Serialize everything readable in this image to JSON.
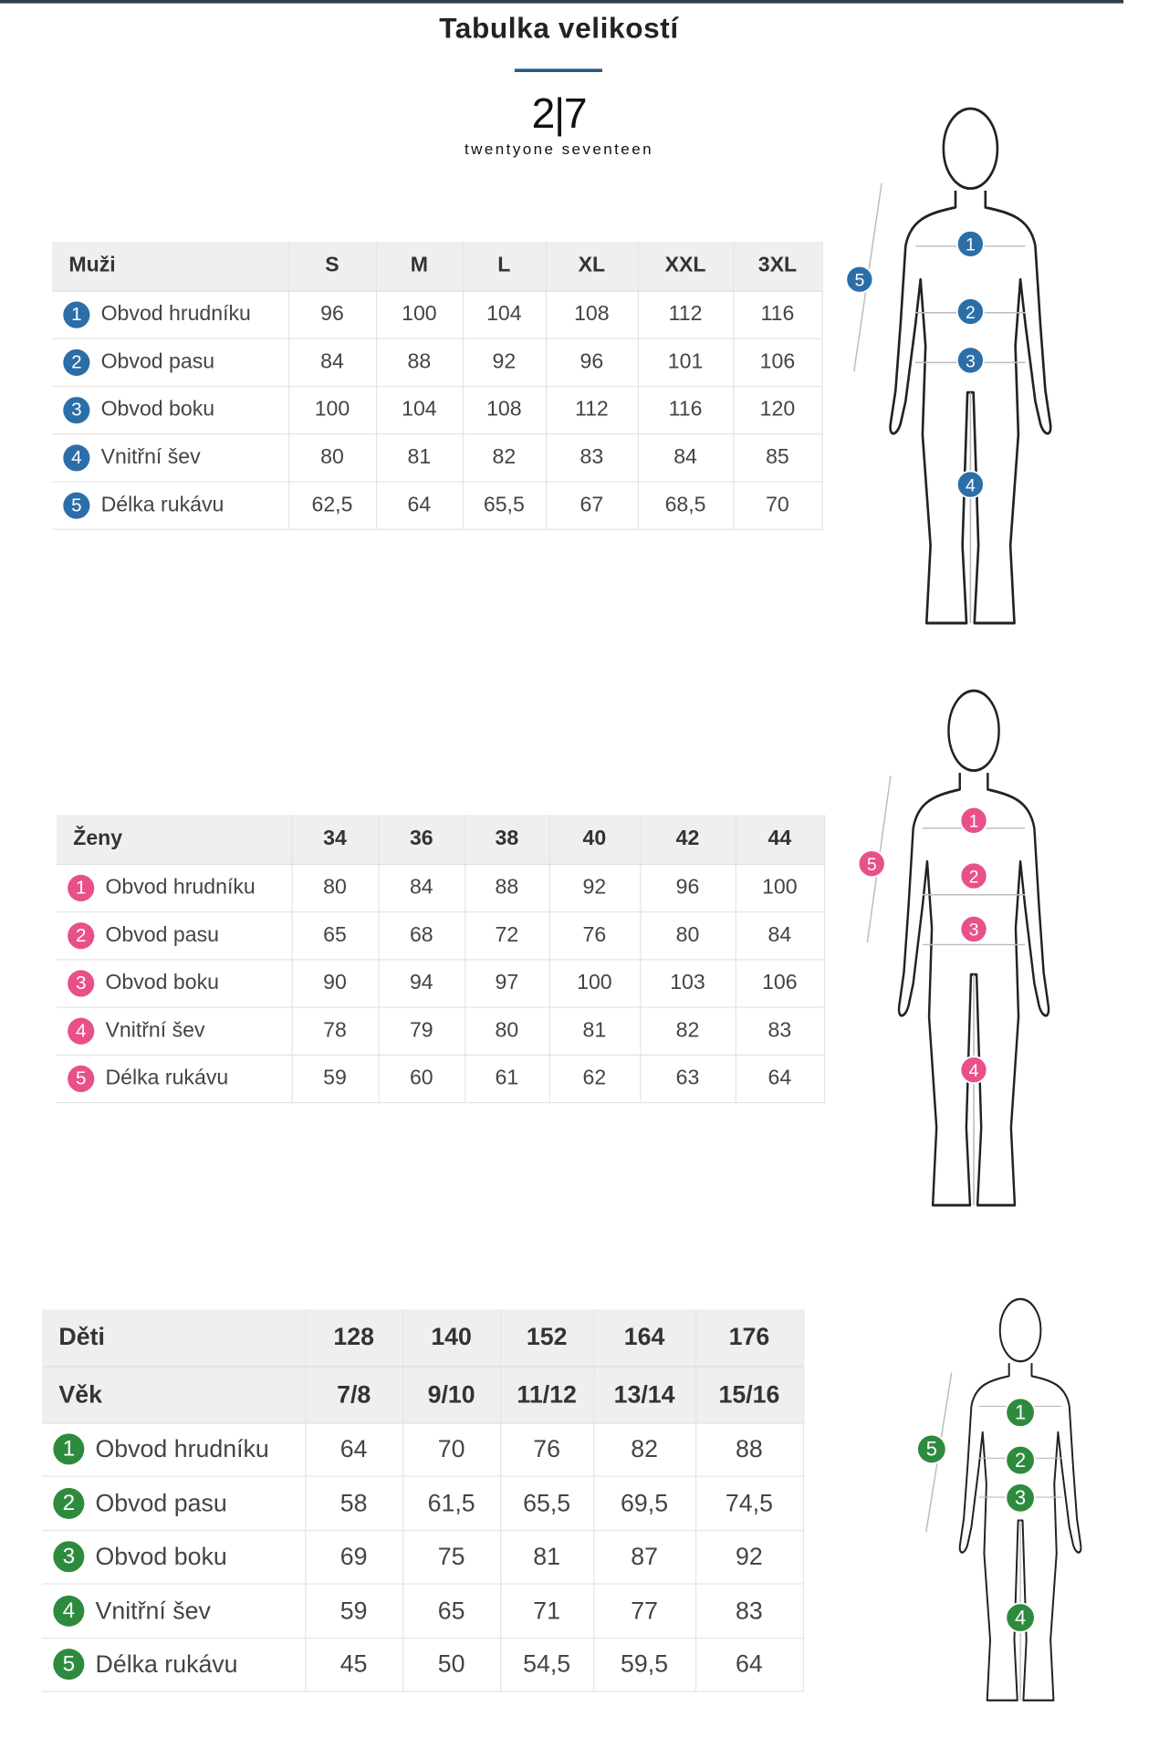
{
  "title": "Tabulka velikostí",
  "logo": {
    "mark": "2|7",
    "name": "twentyone seventeen"
  },
  "tables": [
    {
      "color": "#2c6ea8",
      "header_rows": [
        {
          "label": "Muži",
          "values": [
            "S",
            "M",
            "L",
            "XL",
            "XXL",
            "3XL"
          ]
        }
      ],
      "rows": [
        {
          "marker": "1",
          "label": "Obvod hrudníku",
          "values": [
            "96",
            "100",
            "104",
            "108",
            "112",
            "116"
          ]
        },
        {
          "marker": "2",
          "label": "Obvod pasu",
          "values": [
            "84",
            "88",
            "92",
            "96",
            "101",
            "106"
          ]
        },
        {
          "marker": "3",
          "label": "Obvod boku",
          "values": [
            "100",
            "104",
            "108",
            "112",
            "116",
            "120"
          ]
        },
        {
          "marker": "4",
          "label": "Vnitřní šev",
          "values": [
            "80",
            "81",
            "82",
            "83",
            "84",
            "85"
          ]
        },
        {
          "marker": "5",
          "label": "Délka rukávu",
          "values": [
            "62,5",
            "64",
            "65,5",
            "67",
            "68,5",
            "70"
          ]
        }
      ]
    },
    {
      "color": "#e8508a",
      "header_rows": [
        {
          "label": "Ženy",
          "values": [
            "34",
            "36",
            "38",
            "40",
            "42",
            "44"
          ]
        }
      ],
      "rows": [
        {
          "marker": "1",
          "label": "Obvod hrudníku",
          "values": [
            "80",
            "84",
            "88",
            "92",
            "96",
            "100"
          ]
        },
        {
          "marker": "2",
          "label": "Obvod pasu",
          "values": [
            "65",
            "68",
            "72",
            "76",
            "80",
            "84"
          ]
        },
        {
          "marker": "3",
          "label": "Obvod boku",
          "values": [
            "90",
            "94",
            "97",
            "100",
            "103",
            "106"
          ]
        },
        {
          "marker": "4",
          "label": "Vnitřní šev",
          "values": [
            "78",
            "79",
            "80",
            "81",
            "82",
            "83"
          ]
        },
        {
          "marker": "5",
          "label": "Délka rukávu",
          "values": [
            "59",
            "60",
            "61",
            "62",
            "63",
            "64"
          ]
        }
      ]
    },
    {
      "color": "#2e8b3e",
      "header_rows": [
        {
          "label": "Děti",
          "values": [
            "128",
            "140",
            "152",
            "164",
            "176"
          ]
        },
        {
          "label": "Věk",
          "values": [
            "7/8",
            "9/10",
            "11/12",
            "13/14",
            "15/16"
          ]
        }
      ],
      "rows": [
        {
          "marker": "1",
          "label": "Obvod hrudníku",
          "values": [
            "64",
            "70",
            "76",
            "82",
            "88"
          ]
        },
        {
          "marker": "2",
          "label": "Obvod pasu",
          "values": [
            "58",
            "61,5",
            "65,5",
            "69,5",
            "74,5"
          ]
        },
        {
          "marker": "3",
          "label": "Obvod boku",
          "values": [
            "69",
            "75",
            "81",
            "87",
            "92"
          ]
        },
        {
          "marker": "4",
          "label": "Vnitřní šev",
          "values": [
            "59",
            "65",
            "71",
            "77",
            "83"
          ]
        },
        {
          "marker": "5",
          "label": "Délka rukávu",
          "values": [
            "45",
            "50",
            "54,5",
            "59,5",
            "64"
          ]
        }
      ]
    }
  ]
}
